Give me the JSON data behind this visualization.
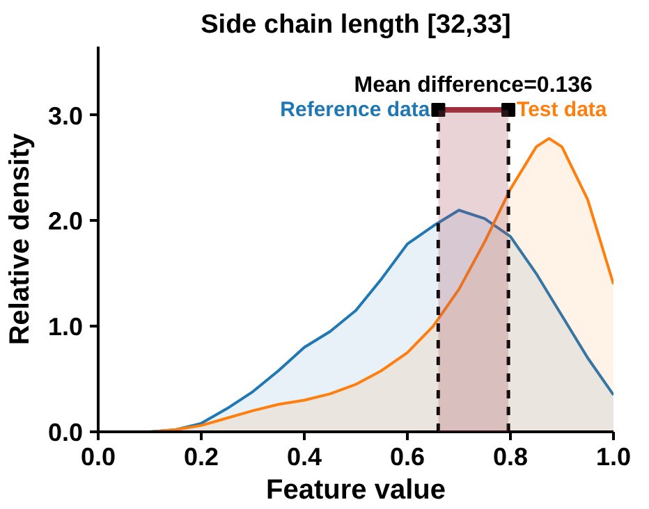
{
  "chart_data": {
    "type": "area",
    "title": "Side chain length [32,33]",
    "xlabel": "Feature value",
    "ylabel": "Relative density",
    "x": [
      0.0,
      0.1,
      0.15,
      0.2,
      0.25,
      0.3,
      0.35,
      0.4,
      0.45,
      0.5,
      0.55,
      0.6,
      0.65,
      0.7,
      0.75,
      0.8,
      0.85,
      0.875,
      0.9,
      0.95,
      1.0
    ],
    "series": [
      {
        "name": "Reference data",
        "color": "#1f77b4",
        "values": [
          0.0,
          0.0,
          0.02,
          0.08,
          0.22,
          0.38,
          0.58,
          0.8,
          0.95,
          1.15,
          1.45,
          1.78,
          1.95,
          2.1,
          2.02,
          1.85,
          1.5,
          1.3,
          1.1,
          0.7,
          0.35
        ]
      },
      {
        "name": "Test data",
        "color": "#ff7f0e",
        "values": [
          0.0,
          0.0,
          0.02,
          0.06,
          0.13,
          0.2,
          0.26,
          0.3,
          0.36,
          0.45,
          0.58,
          0.75,
          1.0,
          1.35,
          1.8,
          2.3,
          2.7,
          2.78,
          2.7,
          2.2,
          1.4
        ]
      },
      {
        "type": "line",
        "color": "#9b2d3a",
        "marker": "square",
        "x": [
          0.66,
          0.796
        ],
        "values": [
          3.05,
          3.05
        ]
      }
    ],
    "ref_lines": [
      {
        "axis": "x",
        "value": 0.66,
        "color": "#000000",
        "line_style": "dashed"
      },
      {
        "axis": "x",
        "value": 0.796,
        "color": "#000000",
        "line_style": "dashed"
      }
    ],
    "bands": [
      {
        "axis": "x",
        "from": 0.66,
        "to": 0.796,
        "label": "Mean difference=0.136",
        "color": "#a8505f"
      }
    ],
    "xlim": [
      0.0,
      1.0
    ],
    "ylim": [
      0.0,
      3.65
    ],
    "xticks": [
      {
        "value": 0.0,
        "label": "0.0"
      },
      0.2,
      0.4,
      0.6,
      0.8,
      {
        "value": 1.0,
        "label": "1.0"
      }
    ],
    "yticks": [
      {
        "value": 0,
        "label": "0.0"
      },
      {
        "value": 1,
        "label": "1.0"
      },
      {
        "value": 2,
        "label": "2.0"
      },
      {
        "value": 3,
        "label": "3.0"
      }
    ],
    "grid": false
  }
}
